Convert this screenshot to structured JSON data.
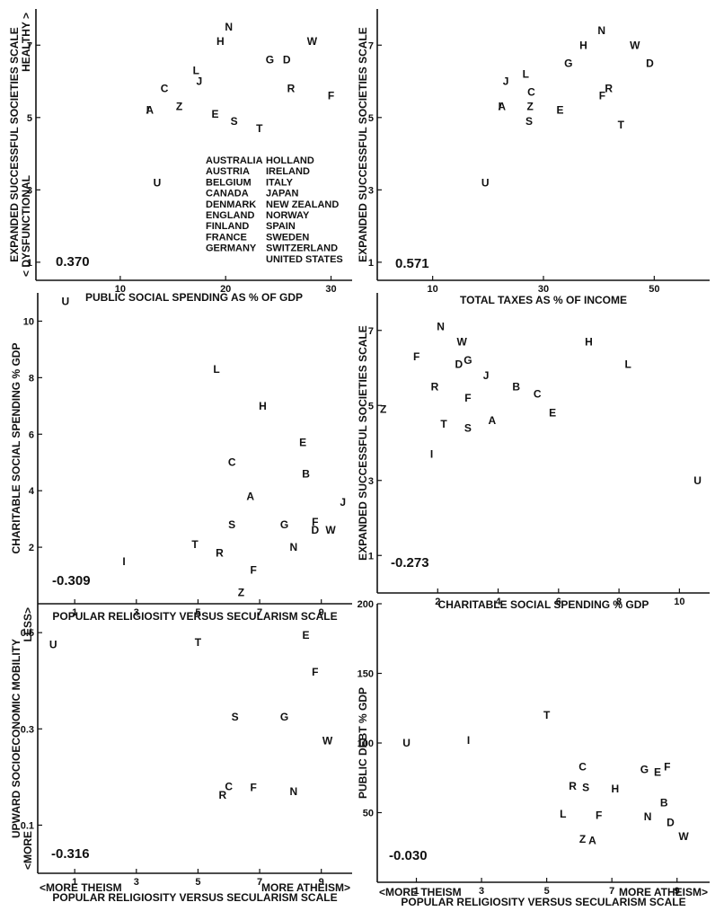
{
  "chart_data": [
    {
      "id": "p1",
      "type": "scatter",
      "xlabel": "PUBLIC SOCIAL SPENDING AS % OF GDP",
      "ylabel": "EXPANDED SUCCESSFUL SOCIETIES SCALE",
      "ylabel_low": "< DYSFUNCTIONAL",
      "ylabel_high": "HEALTHY >",
      "xlim": [
        2,
        32
      ],
      "ylim": [
        0.5,
        8
      ],
      "xticks": [
        10,
        20,
        30
      ],
      "yticks": [
        1,
        3,
        5,
        7
      ],
      "correlation": "0.370",
      "points": [
        {
          "label": "N",
          "x": 20.3,
          "y": 7.5
        },
        {
          "label": "H",
          "x": 19.5,
          "y": 7.1
        },
        {
          "label": "W",
          "x": 28.2,
          "y": 7.1
        },
        {
          "label": "G",
          "x": 24.2,
          "y": 6.6
        },
        {
          "label": "D",
          "x": 25.8,
          "y": 6.6
        },
        {
          "label": "L",
          "x": 17.2,
          "y": 6.3
        },
        {
          "label": "J",
          "x": 17.5,
          "y": 6.0
        },
        {
          "label": "C",
          "x": 14.2,
          "y": 5.8
        },
        {
          "label": "R",
          "x": 26.2,
          "y": 5.8
        },
        {
          "label": "F",
          "x": 30.0,
          "y": 5.6
        },
        {
          "label": "A",
          "x": 12.8,
          "y": 5.2
        },
        {
          "label": "I",
          "x": 12.6,
          "y": 5.2
        },
        {
          "label": "Z",
          "x": 15.6,
          "y": 5.3
        },
        {
          "label": "E",
          "x": 19.0,
          "y": 5.1
        },
        {
          "label": "S",
          "x": 20.8,
          "y": 4.9
        },
        {
          "label": "T",
          "x": 23.2,
          "y": 4.7
        },
        {
          "label": "U",
          "x": 13.5,
          "y": 3.2
        }
      ],
      "legend": [
        [
          "AUSTRALIA",
          "HOLLAND"
        ],
        [
          "AUSTRIA",
          "IRELAND"
        ],
        [
          "BELGIUM",
          "ITALY"
        ],
        [
          "CANADA",
          "JAPAN"
        ],
        [
          "DENMARK",
          "NEW ZEALAND"
        ],
        [
          "ENGLAND",
          "NORWAY"
        ],
        [
          "FINLAND",
          "SPAIN"
        ],
        [
          "FRANCE",
          "SWEDEN"
        ],
        [
          "GERMANY",
          "SWITZERLAND"
        ],
        [
          "",
          "UNITED STATES"
        ]
      ]
    },
    {
      "id": "p2",
      "type": "scatter",
      "xlabel": "TOTAL TAXES AS % OF INCOME",
      "ylabel": "EXPANDED SUCCESSFUL SOCIETIES SCALE",
      "xlim": [
        0,
        60
      ],
      "ylim": [
        0.5,
        8
      ],
      "xticks": [
        10,
        30,
        50
      ],
      "yticks": [
        1,
        3,
        5,
        7
      ],
      "correlation": "0.571",
      "points": [
        {
          "label": "N",
          "x": 40.5,
          "y": 7.4
        },
        {
          "label": "H",
          "x": 37.2,
          "y": 7.0
        },
        {
          "label": "W",
          "x": 46.5,
          "y": 7.0
        },
        {
          "label": "G",
          "x": 34.5,
          "y": 6.5
        },
        {
          "label": "D",
          "x": 49.2,
          "y": 6.5
        },
        {
          "label": "L",
          "x": 26.8,
          "y": 6.2
        },
        {
          "label": "J",
          "x": 23.2,
          "y": 6.0
        },
        {
          "label": "C",
          "x": 27.8,
          "y": 5.7
        },
        {
          "label": "R",
          "x": 41.8,
          "y": 5.8
        },
        {
          "label": "F",
          "x": 40.6,
          "y": 5.6
        },
        {
          "label": "A",
          "x": 22.5,
          "y": 5.3
        },
        {
          "label": "I",
          "x": 22.1,
          "y": 5.3
        },
        {
          "label": "Z",
          "x": 27.6,
          "y": 5.3
        },
        {
          "label": "E",
          "x": 33.0,
          "y": 5.2
        },
        {
          "label": "S",
          "x": 27.4,
          "y": 4.9
        },
        {
          "label": "T",
          "x": 44.0,
          "y": 4.8
        },
        {
          "label": "U",
          "x": 19.5,
          "y": 3.2
        }
      ]
    },
    {
      "id": "p3",
      "type": "scatter",
      "xlabel": "POPULAR RELIGIOSITY VERSUS SECULARISM SCALE",
      "ylabel": "CHARITABLE SOCIAL SPENDING % GDP",
      "xlim": [
        -0.2,
        10
      ],
      "ylim": [
        0,
        11
      ],
      "xticks": [
        1,
        3,
        5,
        7,
        9
      ],
      "yticks": [
        2,
        4,
        6,
        8,
        10
      ],
      "correlation": "-0.309",
      "points": [
        {
          "label": "U",
          "x": 0.7,
          "y": 10.7
        },
        {
          "label": "L",
          "x": 5.6,
          "y": 8.3
        },
        {
          "label": "H",
          "x": 7.1,
          "y": 7.0
        },
        {
          "label": "E",
          "x": 8.4,
          "y": 5.7
        },
        {
          "label": "C",
          "x": 6.1,
          "y": 5.0
        },
        {
          "label": "B",
          "x": 8.5,
          "y": 4.6
        },
        {
          "label": "A",
          "x": 6.7,
          "y": 3.8
        },
        {
          "label": "J",
          "x": 9.7,
          "y": 3.6
        },
        {
          "label": "S",
          "x": 6.1,
          "y": 2.8
        },
        {
          "label": "G",
          "x": 7.8,
          "y": 2.8
        },
        {
          "label": "F",
          "x": 8.8,
          "y": 2.9
        },
        {
          "label": "W",
          "x": 9.3,
          "y": 2.6
        },
        {
          "label": "D",
          "x": 8.8,
          "y": 2.6
        },
        {
          "label": "T",
          "x": 4.9,
          "y": 2.1
        },
        {
          "label": "N",
          "x": 8.1,
          "y": 2.0
        },
        {
          "label": "R",
          "x": 5.7,
          "y": 1.8
        },
        {
          "label": "I",
          "x": 2.6,
          "y": 1.5
        },
        {
          "label": "F",
          "x": 6.8,
          "y": 1.2
        },
        {
          "label": "Z",
          "x": 6.4,
          "y": 0.4
        }
      ]
    },
    {
      "id": "p4",
      "type": "scatter",
      "xlabel": "CHARITABLE SOCIAL SPENDING % GDP",
      "ylabel": "EXPANDED SUCCESSFUL SOCIETIES SCALE",
      "xlim": [
        0,
        11
      ],
      "ylim": [
        0,
        8
      ],
      "xticks": [
        2,
        4,
        6,
        8,
        10
      ],
      "yticks": [
        1,
        3,
        5,
        7
      ],
      "correlation": "-0.273",
      "points": [
        {
          "label": "N",
          "x": 2.1,
          "y": 7.1
        },
        {
          "label": "W",
          "x": 2.8,
          "y": 6.7
        },
        {
          "label": "H",
          "x": 7.0,
          "y": 6.7
        },
        {
          "label": "F",
          "x": 1.3,
          "y": 6.3
        },
        {
          "label": "D",
          "x": 2.7,
          "y": 6.1
        },
        {
          "label": "G",
          "x": 3.0,
          "y": 6.2
        },
        {
          "label": "L",
          "x": 8.3,
          "y": 6.1
        },
        {
          "label": "J",
          "x": 3.6,
          "y": 5.8
        },
        {
          "label": "R",
          "x": 1.9,
          "y": 5.5
        },
        {
          "label": "B",
          "x": 4.6,
          "y": 5.5
        },
        {
          "label": "C",
          "x": 5.3,
          "y": 5.3
        },
        {
          "label": "F",
          "x": 3.0,
          "y": 5.2
        },
        {
          "label": "Z",
          "x": 0.2,
          "y": 4.9
        },
        {
          "label": "E",
          "x": 5.8,
          "y": 4.8
        },
        {
          "label": "A",
          "x": 3.8,
          "y": 4.6
        },
        {
          "label": "T",
          "x": 2.2,
          "y": 4.5
        },
        {
          "label": "S",
          "x": 3.0,
          "y": 4.4
        },
        {
          "label": "I",
          "x": 1.8,
          "y": 3.7
        },
        {
          "label": "U",
          "x": 10.6,
          "y": 3.0
        }
      ]
    },
    {
      "id": "p5",
      "type": "scatter",
      "xlabel": "POPULAR RELIGIOSITY VERSUS SECULARISM SCALE",
      "xlabel_left": "<MORE THEISM",
      "xlabel_right": "MORE ATHEISM>",
      "ylabel": "UPWARD SOCIOECONOMIC MOBILITY",
      "ylabel_low": "<MORE",
      "ylabel_high": "LESS>",
      "xlim": [
        -0.2,
        10
      ],
      "ylim": [
        0,
        0.56
      ],
      "xticks": [
        1,
        3,
        5,
        7,
        9
      ],
      "yticks": [
        0.1,
        0.3,
        0.5
      ],
      "correlation": "-0.316",
      "points": [
        {
          "label": "U",
          "x": 0.3,
          "y": 0.475
        },
        {
          "label": "T",
          "x": 5.0,
          "y": 0.48
        },
        {
          "label": "E",
          "x": 8.5,
          "y": 0.495
        },
        {
          "label": "F",
          "x": 8.8,
          "y": 0.418
        },
        {
          "label": "S",
          "x": 6.2,
          "y": 0.325
        },
        {
          "label": "G",
          "x": 7.8,
          "y": 0.325
        },
        {
          "label": "W",
          "x": 9.2,
          "y": 0.275
        },
        {
          "label": "C",
          "x": 6.0,
          "y": 0.18
        },
        {
          "label": "F",
          "x": 6.8,
          "y": 0.178
        },
        {
          "label": "N",
          "x": 8.1,
          "y": 0.17
        },
        {
          "label": "R",
          "x": 5.8,
          "y": 0.162
        }
      ]
    },
    {
      "id": "p6",
      "type": "scatter",
      "xlabel": "POPULAR RELIGIOSITY VERSUS SECULARISM SCALE",
      "xlabel_left": "<MORE THEISM",
      "xlabel_right": "MORE ATHEISM>",
      "ylabel": "PUBLIC DEBT % GDP",
      "xlim": [
        -0.2,
        10
      ],
      "ylim": [
        0,
        200
      ],
      "xticks": [
        1,
        3,
        5,
        7,
        9
      ],
      "yticks": [
        50,
        100,
        150,
        200
      ],
      "correlation": "-0.030",
      "points": [
        {
          "label": "T",
          "x": 5.0,
          "y": 120
        },
        {
          "label": "U",
          "x": 0.7,
          "y": 100
        },
        {
          "label": "I",
          "x": 2.6,
          "y": 102
        },
        {
          "label": "C",
          "x": 6.1,
          "y": 83
        },
        {
          "label": "G",
          "x": 8.0,
          "y": 81
        },
        {
          "label": "F",
          "x": 8.7,
          "y": 83
        },
        {
          "label": "E",
          "x": 8.4,
          "y": 79
        },
        {
          "label": "R",
          "x": 5.8,
          "y": 69
        },
        {
          "label": "S",
          "x": 6.2,
          "y": 68
        },
        {
          "label": "H",
          "x": 7.1,
          "y": 67
        },
        {
          "label": "B",
          "x": 8.6,
          "y": 57
        },
        {
          "label": "L",
          "x": 5.5,
          "y": 49
        },
        {
          "label": "F",
          "x": 6.6,
          "y": 48
        },
        {
          "label": "N",
          "x": 8.1,
          "y": 47
        },
        {
          "label": "D",
          "x": 8.8,
          "y": 43
        },
        {
          "label": "W",
          "x": 9.2,
          "y": 33
        },
        {
          "label": "Z",
          "x": 6.1,
          "y": 31
        },
        {
          "label": "A",
          "x": 6.4,
          "y": 30
        }
      ]
    }
  ]
}
